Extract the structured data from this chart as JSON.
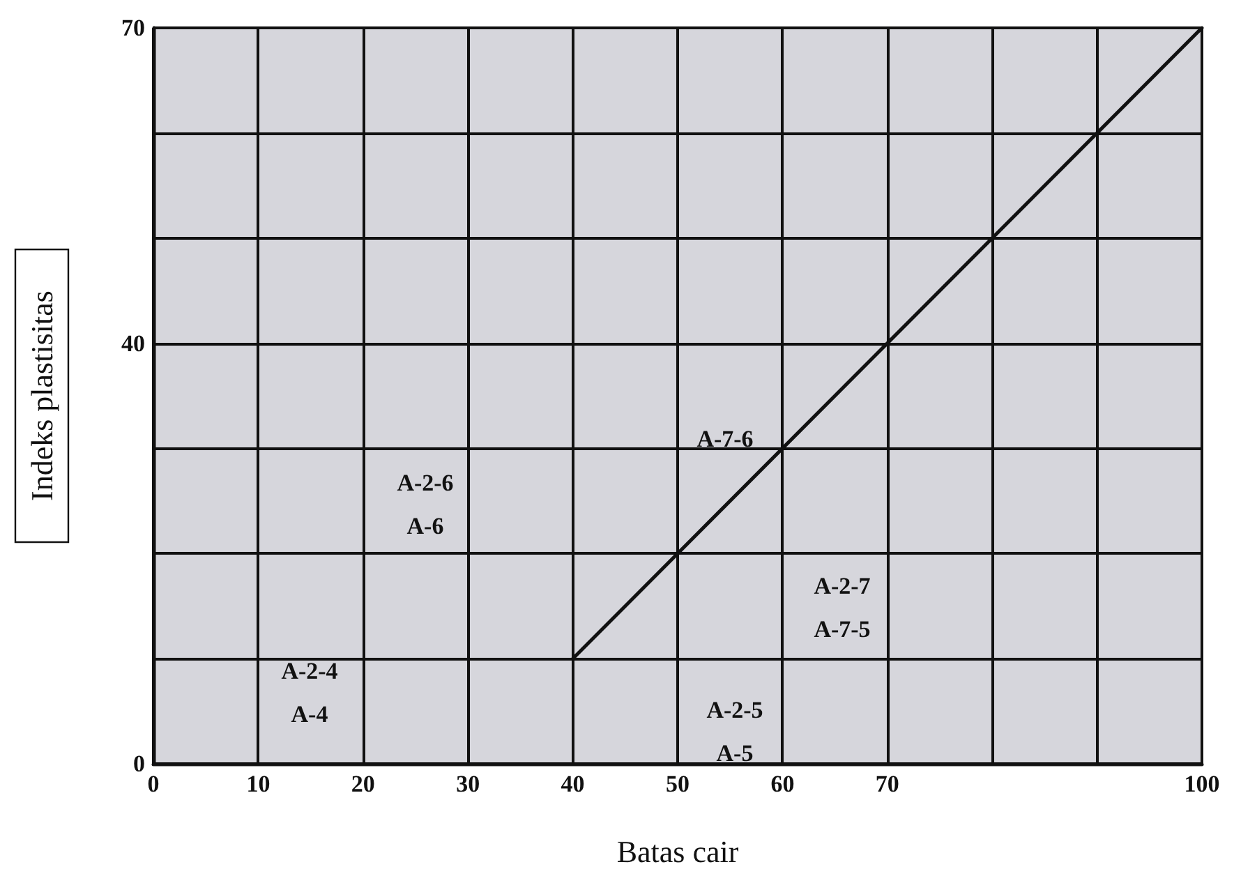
{
  "chart_data": {
    "type": "line",
    "xlabel": "Batas cair",
    "ylabel": "Indeks plastisitas",
    "xlim": [
      0,
      100
    ],
    "ylim": [
      0,
      70
    ],
    "xticks": [
      0,
      10,
      20,
      30,
      40,
      50,
      60,
      70,
      {
        "value": 80,
        "label": null
      },
      {
        "value": 90,
        "label": null
      },
      100
    ],
    "yticks": [
      0,
      {
        "value": 10,
        "label": null
      },
      {
        "value": 20,
        "label": null
      },
      {
        "value": 30,
        "label": null
      },
      40,
      {
        "value": 50,
        "label": null
      },
      {
        "value": 60,
        "label": null
      },
      70
    ],
    "series": [
      {
        "color": "#111111",
        "x": [
          40,
          100
        ],
        "values": [
          10,
          70
        ]
      }
    ],
    "marker": "none",
    "line_style": "solid",
    "grid": true,
    "annotations": [
      "A-2-4\nA-4",
      "A-2-6\nA-6",
      "A-7-6",
      "A-2-7\nA-7-5",
      "A-2-5\nA-5"
    ]
  }
}
